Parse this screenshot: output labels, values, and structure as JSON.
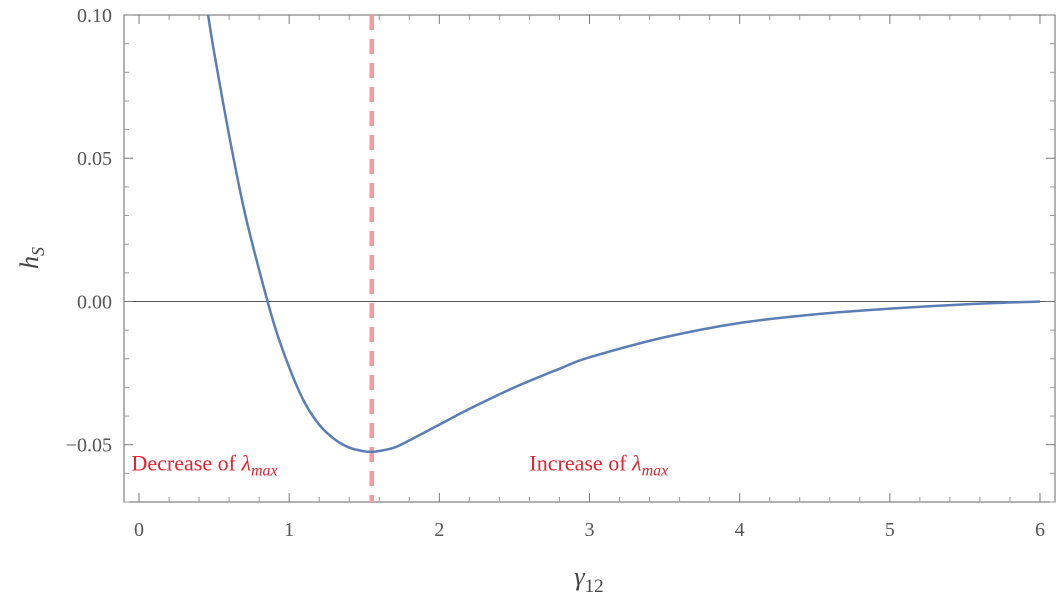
{
  "chart_data": {
    "type": "line",
    "title": "",
    "xlabel": "γ",
    "xlabel_sub": "12",
    "ylabel": "h",
    "ylabel_sub": "S",
    "xlim": [
      -0.1,
      6.1
    ],
    "ylim": [
      -0.07,
      0.1
    ],
    "x_ticks": [
      0,
      1,
      2,
      3,
      4,
      5,
      6
    ],
    "x_tick_labels": [
      "0",
      "1",
      "2",
      "3",
      "4",
      "5",
      "6"
    ],
    "y_ticks": [
      -0.05,
      0.0,
      0.05,
      0.1
    ],
    "y_tick_labels": [
      "−0.05",
      "0.00",
      "0.05",
      "0.10"
    ],
    "zero_line": true,
    "grid": false,
    "series": [
      {
        "color": "#5b7db5",
        "x": [
          0.46,
          0.5,
          0.6,
          0.7,
          0.8,
          0.9,
          1.0,
          1.1,
          1.2,
          1.3,
          1.4,
          1.5,
          1.55,
          1.6,
          1.7,
          1.8,
          2.0,
          2.2,
          2.5,
          2.8,
          3.0,
          3.5,
          4.0,
          4.5,
          5.0,
          5.5,
          6.0
        ],
        "y": [
          0.1,
          0.087,
          0.058,
          0.032,
          0.011,
          -0.008,
          -0.023,
          -0.035,
          -0.043,
          -0.048,
          -0.051,
          -0.0523,
          -0.0525,
          -0.0522,
          -0.051,
          -0.0485,
          -0.043,
          -0.0375,
          -0.03,
          -0.0235,
          -0.0195,
          -0.0125,
          -0.0075,
          -0.0045,
          -0.0025,
          -0.001,
          0.0
        ]
      }
    ],
    "vline": {
      "x": 1.55,
      "color": "#f49ba2",
      "style": "dashed"
    },
    "annotations": [
      {
        "text": "Decrease of ",
        "symbol": "λ",
        "symbol_sub": "max",
        "x": -0.05,
        "y": -0.059,
        "color": "#e8202f"
      },
      {
        "text": "Increase of ",
        "symbol": "λ",
        "symbol_sub": "max",
        "x": 2.6,
        "y": -0.059,
        "color": "#e8202f"
      }
    ],
    "frame_color": "#666666"
  }
}
